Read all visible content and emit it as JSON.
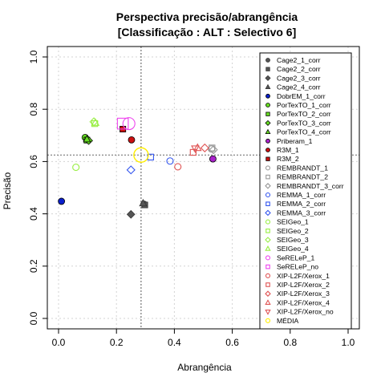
{
  "chart_data": {
    "type": "scatter",
    "title": "Perspectiva precisão/abrangência",
    "subtitle": "[Classificação : ALT : Selectivo 6]",
    "xlabel": "Abrangência",
    "ylabel": "Precisão",
    "xlim": [
      0,
      1
    ],
    "ylim": [
      0,
      1
    ],
    "xticks": [
      "0.0",
      "0.2",
      "0.4",
      "0.6",
      "0.8",
      "1.0"
    ],
    "yticks": [
      "0.0",
      "0.2",
      "0.4",
      "0.6",
      "0.8",
      "1.0"
    ],
    "grid": true,
    "legend_position": "top-right",
    "reference_lines": {
      "x": 0.285,
      "y": 0.625
    },
    "series": [
      {
        "name": "Cage2_1_corr",
        "shape": "circle",
        "filled": true,
        "color": "#555555",
        "points": [
          [
            0.295,
            0.437
          ]
        ]
      },
      {
        "name": "Cage2_2_corr",
        "shape": "square",
        "filled": true,
        "color": "#555555",
        "points": [
          [
            0.298,
            0.434
          ]
        ]
      },
      {
        "name": "Cage2_3_corr",
        "shape": "diamond",
        "filled": true,
        "color": "#555555",
        "points": [
          [
            0.25,
            0.398
          ]
        ]
      },
      {
        "name": "Cage2_4_corr",
        "shape": "triangle",
        "filled": true,
        "color": "#555555",
        "points": [
          [
            0.292,
            0.44
          ]
        ]
      },
      {
        "name": "DobrEM_1_corr",
        "shape": "circle",
        "filled": true,
        "color": "#0a1fcc",
        "points": [
          [
            0.01,
            0.448
          ]
        ]
      },
      {
        "name": "PorTexTO_1_corr",
        "shape": "circle",
        "filled": true,
        "color": "#66dd22",
        "points": [
          [
            0.092,
            0.692
          ]
        ]
      },
      {
        "name": "PorTexTO_2_corr",
        "shape": "square",
        "filled": true,
        "color": "#66dd22",
        "points": [
          [
            0.098,
            0.682
          ]
        ]
      },
      {
        "name": "PorTexTO_3_corr",
        "shape": "diamond",
        "filled": true,
        "color": "#66dd22",
        "points": [
          [
            0.104,
            0.68
          ]
        ]
      },
      {
        "name": "PorTexTO_4_corr",
        "shape": "triangle",
        "filled": true,
        "color": "#66dd22",
        "points": [
          [
            0.098,
            0.685
          ]
        ]
      },
      {
        "name": "Priberam_1",
        "shape": "circle",
        "filled": true,
        "color": "#aa22cc",
        "points": [
          [
            0.533,
            0.61
          ]
        ]
      },
      {
        "name": "R3M_1",
        "shape": "circle",
        "filled": true,
        "color": "#cc1111",
        "points": [
          [
            0.252,
            0.683
          ]
        ]
      },
      {
        "name": "R3M_2",
        "shape": "square",
        "filled": true,
        "color": "#cc1111",
        "points": [
          [
            0.222,
            0.724
          ]
        ]
      },
      {
        "name": "REMBRANDT_1",
        "shape": "circle",
        "filled": false,
        "color": "#999999",
        "points": [
          [
            0.528,
            0.648
          ]
        ]
      },
      {
        "name": "REMBRANDT_2",
        "shape": "square",
        "filled": false,
        "color": "#999999",
        "points": [
          [
            0.53,
            0.652
          ]
        ]
      },
      {
        "name": "REMBRANDT_3_corr",
        "shape": "diamond",
        "filled": false,
        "color": "#999999",
        "points": [
          [
            0.535,
            0.645
          ]
        ]
      },
      {
        "name": "REMMA_1_corr",
        "shape": "circle",
        "filled": false,
        "color": "#3355ee",
        "points": [
          [
            0.385,
            0.602
          ]
        ]
      },
      {
        "name": "REMMA_2_corr",
        "shape": "square",
        "filled": false,
        "color": "#3355ee",
        "points": [
          [
            0.318,
            0.617
          ]
        ]
      },
      {
        "name": "REMMA_3_corr",
        "shape": "diamond",
        "filled": false,
        "color": "#3355ee",
        "points": [
          [
            0.25,
            0.568
          ]
        ]
      },
      {
        "name": "SEIGeo_1",
        "shape": "circle",
        "filled": false,
        "color": "#99ee44",
        "points": [
          [
            0.06,
            0.578
          ]
        ]
      },
      {
        "name": "SEIGeo_2",
        "shape": "square",
        "filled": false,
        "color": "#99ee44",
        "points": [
          [
            0.125,
            0.745
          ]
        ]
      },
      {
        "name": "SEIGeo_3",
        "shape": "diamond",
        "filled": false,
        "color": "#99ee44",
        "points": [
          [
            0.122,
            0.752
          ]
        ]
      },
      {
        "name": "SEIGeo_4",
        "shape": "triangle",
        "filled": false,
        "color": "#99ee44",
        "points": [
          [
            0.127,
            0.748
          ]
        ]
      },
      {
        "name": "SeRELeP_1",
        "shape": "circle",
        "filled": false,
        "color": "#ee44ee",
        "points": [
          [
            0.243,
            0.745
          ]
        ]
      },
      {
        "name": "SeRELeP_no",
        "shape": "square",
        "filled": false,
        "color": "#ee44ee",
        "points": [
          [
            0.222,
            0.745
          ]
        ]
      },
      {
        "name": "XIP-L2F/Xerox_1",
        "shape": "circle",
        "filled": false,
        "color": "#e05555",
        "points": [
          [
            0.412,
            0.58
          ]
        ]
      },
      {
        "name": "XIP-L2F/Xerox_2",
        "shape": "square",
        "filled": false,
        "color": "#e05555",
        "points": [
          [
            0.465,
            0.635
          ]
        ]
      },
      {
        "name": "XIP-L2F/Xerox_3",
        "shape": "diamond",
        "filled": false,
        "color": "#e05555",
        "points": [
          [
            0.505,
            0.652
          ]
        ]
      },
      {
        "name": "XIP-L2F/Xerox_4",
        "shape": "triangle",
        "filled": false,
        "color": "#e05555",
        "points": [
          [
            0.48,
            0.652
          ]
        ]
      },
      {
        "name": "XIP-L2F/Xerox_no",
        "shape": "triangle-down",
        "filled": false,
        "color": "#e05555",
        "points": [
          [
            0.472,
            0.65
          ]
        ]
      },
      {
        "name": "MÉDIA",
        "shape": "circle",
        "filled": false,
        "color": "#ffee00",
        "points": [
          [
            0.285,
            0.625
          ]
        ]
      }
    ]
  }
}
